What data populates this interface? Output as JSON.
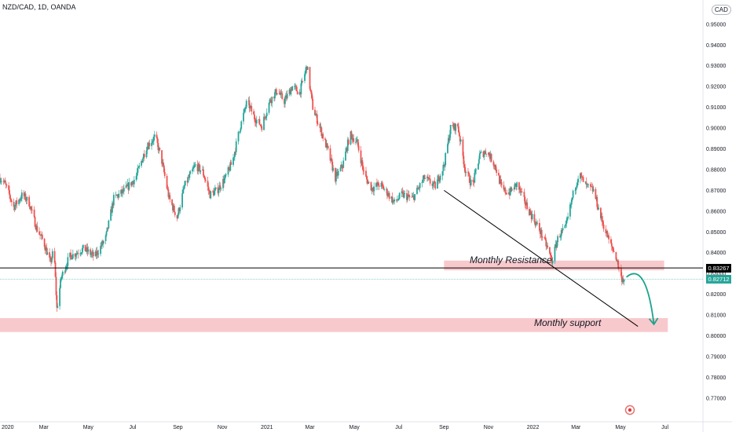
{
  "header": {
    "symbol_line": "NZD/CAD, 1D, OANDA",
    "currency_badge": "CAD"
  },
  "colors": {
    "up": "#26a69a",
    "down": "#ef5350",
    "zone": "#f8c9cc",
    "trendline": "#000000",
    "arrow": "#1aa38c",
    "last_price_bg": "#26a69a",
    "level_bg": "#000000"
  },
  "chart_data": {
    "type": "candlestick",
    "title": "NZD/CAD, 1D, OANDA",
    "ylim": [
      0.765,
      0.956
    ],
    "y_ticks": [
      "0.95000",
      "0.94000",
      "0.93000",
      "0.92000",
      "0.91000",
      "0.90000",
      "0.89000",
      "0.88000",
      "0.87000",
      "0.86000",
      "0.85000",
      "0.84000",
      "0.83000",
      "0.82000",
      "0.81000",
      "0.80000",
      "0.79000",
      "0.78000",
      "0.77000"
    ],
    "x_ticks": [
      "2020",
      "Mar",
      "May",
      "Jul",
      "Sep",
      "Nov",
      "2021",
      "Mar",
      "May",
      "Jul",
      "Sep",
      "Nov",
      "2022",
      "Mar",
      "May",
      "Jul"
    ],
    "xlim": [
      "2020-01-01",
      "2022-08-20"
    ],
    "path_points": [
      [
        "2020-01-01",
        0.876
      ],
      [
        "2020-01-08",
        0.873
      ],
      [
        "2020-01-20",
        0.862
      ],
      [
        "2020-02-01",
        0.868
      ],
      [
        "2020-02-10",
        0.864
      ],
      [
        "2020-02-20",
        0.852
      ],
      [
        "2020-03-01",
        0.845
      ],
      [
        "2020-03-10",
        0.835
      ],
      [
        "2020-03-15",
        0.842
      ],
      [
        "2020-03-19",
        0.813
      ],
      [
        "2020-03-25",
        0.828
      ],
      [
        "2020-04-05",
        0.838
      ],
      [
        "2020-04-15",
        0.84
      ],
      [
        "2020-04-25",
        0.842
      ],
      [
        "2020-05-10",
        0.838
      ],
      [
        "2020-05-25",
        0.847
      ],
      [
        "2020-06-05",
        0.866
      ],
      [
        "2020-06-20",
        0.87
      ],
      [
        "2020-07-05",
        0.876
      ],
      [
        "2020-07-20",
        0.891
      ],
      [
        "2020-08-01",
        0.896
      ],
      [
        "2020-08-10",
        0.884
      ],
      [
        "2020-08-20",
        0.866
      ],
      [
        "2020-08-31",
        0.857
      ],
      [
        "2020-09-10",
        0.872
      ],
      [
        "2020-09-25",
        0.882
      ],
      [
        "2020-10-05",
        0.879
      ],
      [
        "2020-10-15",
        0.868
      ],
      [
        "2020-10-25",
        0.87
      ],
      [
        "2020-11-05",
        0.876
      ],
      [
        "2020-11-15",
        0.884
      ],
      [
        "2020-11-25",
        0.9
      ],
      [
        "2020-12-05",
        0.913
      ],
      [
        "2020-12-15",
        0.905
      ],
      [
        "2020-12-25",
        0.901
      ],
      [
        "2021-01-05",
        0.913
      ],
      [
        "2021-01-15",
        0.918
      ],
      [
        "2021-01-25",
        0.913
      ],
      [
        "2021-02-05",
        0.92
      ],
      [
        "2021-02-15",
        0.917
      ],
      [
        "2021-02-25",
        0.93
      ],
      [
        "2021-03-05",
        0.91
      ],
      [
        "2021-03-15",
        0.9
      ],
      [
        "2021-03-25",
        0.89
      ],
      [
        "2021-04-05",
        0.876
      ],
      [
        "2021-04-15",
        0.882
      ],
      [
        "2021-04-25",
        0.897
      ],
      [
        "2021-05-05",
        0.893
      ],
      [
        "2021-05-15",
        0.877
      ],
      [
        "2021-05-25",
        0.871
      ],
      [
        "2021-06-05",
        0.873
      ],
      [
        "2021-06-15",
        0.869
      ],
      [
        "2021-06-25",
        0.864
      ],
      [
        "2021-07-05",
        0.868
      ],
      [
        "2021-07-20",
        0.866
      ],
      [
        "2021-08-05",
        0.876
      ],
      [
        "2021-08-20",
        0.872
      ],
      [
        "2021-09-01",
        0.882
      ],
      [
        "2021-09-10",
        0.9
      ],
      [
        "2021-09-20",
        0.901
      ],
      [
        "2021-09-30",
        0.88
      ],
      [
        "2021-10-10",
        0.872
      ],
      [
        "2021-10-20",
        0.887
      ],
      [
        "2021-10-30",
        0.889
      ],
      [
        "2021-11-10",
        0.882
      ],
      [
        "2021-11-20",
        0.87
      ],
      [
        "2021-11-30",
        0.869
      ],
      [
        "2021-12-10",
        0.873
      ],
      [
        "2021-12-20",
        0.865
      ],
      [
        "2021-12-30",
        0.858
      ],
      [
        "2022-01-10",
        0.851
      ],
      [
        "2022-01-20",
        0.843
      ],
      [
        "2022-01-27",
        0.836
      ],
      [
        "2022-02-05",
        0.848
      ],
      [
        "2022-02-15",
        0.852
      ],
      [
        "2022-02-25",
        0.868
      ],
      [
        "2022-03-05",
        0.878
      ],
      [
        "2022-03-15",
        0.872
      ],
      [
        "2022-03-25",
        0.87
      ],
      [
        "2022-04-05",
        0.856
      ],
      [
        "2022-04-15",
        0.846
      ],
      [
        "2022-04-25",
        0.838
      ],
      [
        "2022-05-02",
        0.828
      ],
      [
        "2022-05-06",
        0.8271
      ]
    ],
    "zones": [
      {
        "label": "Monthly Resistance",
        "range": [
          0.8315,
          0.8362
        ],
        "from": "2021-09-01",
        "to": "2022-06-30"
      },
      {
        "label": "Monthly support",
        "range": [
          0.8018,
          0.8085
        ],
        "from": "2020-01-01",
        "to": "2022-07-05"
      }
    ],
    "trendline": [
      [
        "2021-09-01",
        0.87
      ],
      [
        "2022-05-25",
        0.8045
      ]
    ],
    "horizontal_level": 0.83267,
    "last_price": 0.82712,
    "labels": {
      "level": "0.83267",
      "last": "0.82712"
    }
  }
}
